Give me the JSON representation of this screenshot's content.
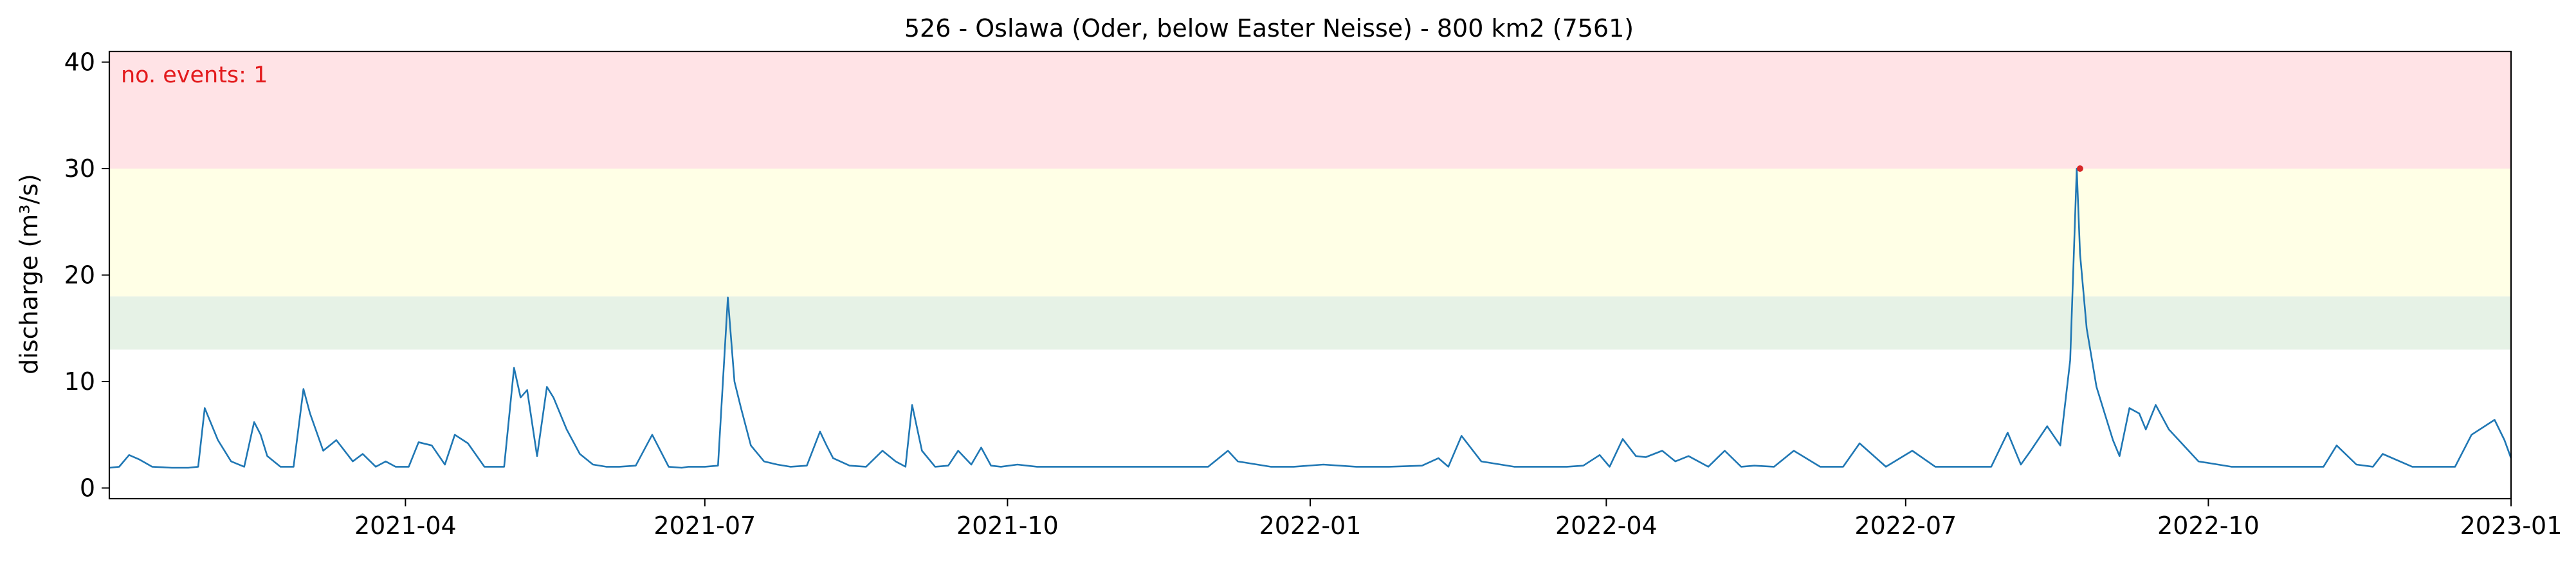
{
  "chart_data": {
    "type": "line",
    "title": "526 - Oslawa (Oder, below Easter Neisse) - 800 km2 (7561)",
    "xlabel": "",
    "ylabel": "discharge (m³/s)",
    "annotation": "no. events: 1",
    "xlim": [
      "2021-01-01",
      "2023-01-01"
    ],
    "ylim": [
      -1,
      41
    ],
    "x_ticks": [
      "2021-04",
      "2021-07",
      "2021-10",
      "2022-01",
      "2022-04",
      "2022-07",
      "2022-10",
      "2023-01"
    ],
    "y_ticks": [
      0,
      10,
      20,
      30,
      40
    ],
    "grid": false,
    "bands": [
      {
        "from": 13,
        "to": 18,
        "color": "#e6f2e6"
      },
      {
        "from": 18,
        "to": 30,
        "color": "#ffffe6"
      },
      {
        "from": 30,
        "to": 41,
        "color": "#ffe3e6"
      }
    ],
    "series": [
      {
        "color": "#1f77b4",
        "x": [
          "2021-01-01",
          "2021-01-04",
          "2021-01-07",
          "2021-01-10",
          "2021-01-14",
          "2021-01-20",
          "2021-01-25",
          "2021-01-28",
          "2021-01-30",
          "2021-02-03",
          "2021-02-07",
          "2021-02-11",
          "2021-02-14",
          "2021-02-16",
          "2021-02-18",
          "2021-02-22",
          "2021-02-26",
          "2021-03-01",
          "2021-03-03",
          "2021-03-07",
          "2021-03-11",
          "2021-03-16",
          "2021-03-19",
          "2021-03-23",
          "2021-03-26",
          "2021-03-29",
          "2021-04-02",
          "2021-04-05",
          "2021-04-09",
          "2021-04-13",
          "2021-04-16",
          "2021-04-20",
          "2021-04-25",
          "2021-05-01",
          "2021-05-04",
          "2021-05-06",
          "2021-05-08",
          "2021-05-11",
          "2021-05-14",
          "2021-05-16",
          "2021-05-20",
          "2021-05-24",
          "2021-05-28",
          "2021-06-01",
          "2021-06-05",
          "2021-06-10",
          "2021-06-15",
          "2021-06-20",
          "2021-06-24",
          "2021-06-26",
          "2021-07-01",
          "2021-07-05",
          "2021-07-08",
          "2021-07-10",
          "2021-07-12",
          "2021-07-15",
          "2021-07-19",
          "2021-07-23",
          "2021-07-27",
          "2021-08-01",
          "2021-08-05",
          "2021-08-07",
          "2021-08-09",
          "2021-08-14",
          "2021-08-19",
          "2021-08-24",
          "2021-08-28",
          "2021-08-31",
          "2021-09-02",
          "2021-09-05",
          "2021-09-09",
          "2021-09-13",
          "2021-09-16",
          "2021-09-20",
          "2021-09-23",
          "2021-09-26",
          "2021-09-29",
          "2021-10-04",
          "2021-10-10",
          "2021-10-20",
          "2021-11-01",
          "2021-11-06",
          "2021-11-20",
          "2021-12-01",
          "2021-12-07",
          "2021-12-10",
          "2021-12-20",
          "2021-12-27",
          "2022-01-05",
          "2022-01-15",
          "2022-01-25",
          "2022-02-04",
          "2022-02-09",
          "2022-02-12",
          "2022-02-16",
          "2022-02-22",
          "2022-03-04",
          "2022-03-15",
          "2022-03-20",
          "2022-03-25",
          "2022-03-30",
          "2022-04-02",
          "2022-04-06",
          "2022-04-10",
          "2022-04-13",
          "2022-04-18",
          "2022-04-22",
          "2022-04-26",
          "2022-05-02",
          "2022-05-07",
          "2022-05-12",
          "2022-05-16",
          "2022-05-22",
          "2022-05-28",
          "2022-06-05",
          "2022-06-12",
          "2022-06-17",
          "2022-06-25",
          "2022-07-03",
          "2022-07-10",
          "2022-07-17",
          "2022-07-23",
          "2022-07-27",
          "2022-08-01",
          "2022-08-05",
          "2022-08-08",
          "2022-08-13",
          "2022-08-17",
          "2022-08-20",
          "2022-08-22",
          "2022-08-23",
          "2022-08-25",
          "2022-08-28",
          "2022-08-31",
          "2022-09-02",
          "2022-09-04",
          "2022-09-07",
          "2022-09-10",
          "2022-09-12",
          "2022-09-15",
          "2022-09-19",
          "2022-09-22",
          "2022-09-25",
          "2022-09-28",
          "2022-10-02",
          "2022-10-08",
          "2022-10-15",
          "2022-10-25",
          "2022-11-05",
          "2022-11-09",
          "2022-11-15",
          "2022-11-20",
          "2022-11-23",
          "2022-12-02",
          "2022-12-10",
          "2022-12-15",
          "2022-12-20",
          "2022-12-27",
          "2022-12-30",
          "2023-01-01"
        ],
        "y": [
          1.9,
          2.0,
          3.1,
          2.7,
          2.0,
          1.9,
          1.9,
          2.0,
          7.5,
          4.5,
          2.5,
          2.0,
          6.2,
          5.0,
          3.0,
          2.0,
          2.0,
          9.3,
          7.0,
          3.5,
          4.5,
          2.5,
          3.2,
          2.0,
          2.5,
          2.0,
          2.0,
          4.3,
          4.0,
          2.2,
          5.0,
          4.2,
          2.0,
          2.0,
          11.3,
          8.5,
          9.2,
          3.0,
          9.5,
          8.5,
          5.5,
          3.2,
          2.2,
          2.0,
          2.0,
          2.1,
          5.0,
          2.0,
          1.9,
          2.0,
          2.0,
          2.1,
          17.9,
          10.0,
          7.5,
          4.0,
          2.5,
          2.2,
          2.0,
          2.1,
          5.3,
          4.0,
          2.8,
          2.1,
          2.0,
          3.5,
          2.5,
          2.0,
          7.8,
          3.5,
          2.0,
          2.1,
          3.5,
          2.2,
          3.8,
          2.1,
          2.0,
          2.2,
          2.0,
          2.0,
          2.0,
          2.0,
          2.0,
          2.0,
          3.5,
          2.5,
          2.0,
          2.0,
          2.2,
          2.0,
          2.0,
          2.1,
          2.8,
          2.0,
          4.9,
          2.5,
          2.0,
          2.0,
          2.0,
          2.1,
          3.1,
          2.0,
          4.6,
          3.0,
          2.9,
          3.5,
          2.5,
          3.0,
          2.0,
          3.5,
          2.0,
          2.1,
          2.0,
          3.5,
          2.0,
          2.0,
          4.2,
          2.0,
          3.5,
          2.0,
          2.0,
          2.0,
          2.0,
          5.2,
          2.2,
          3.5,
          5.8,
          4.0,
          12.0,
          30.0,
          22.0,
          15.0,
          9.5,
          6.5,
          4.5,
          3.0,
          7.5,
          7.0,
          5.5,
          7.8,
          5.5,
          4.5,
          3.5,
          2.5,
          2.3,
          2.0,
          2.0,
          2.0,
          2.0,
          4.0,
          2.2,
          2.0,
          3.2,
          2.0,
          2.0,
          2.0,
          5.0,
          6.4,
          4.5,
          2.8
        ]
      }
    ],
    "event_markers": [
      {
        "x": "2022-08-23",
        "y": 30.0,
        "color": "#d62728"
      }
    ]
  }
}
